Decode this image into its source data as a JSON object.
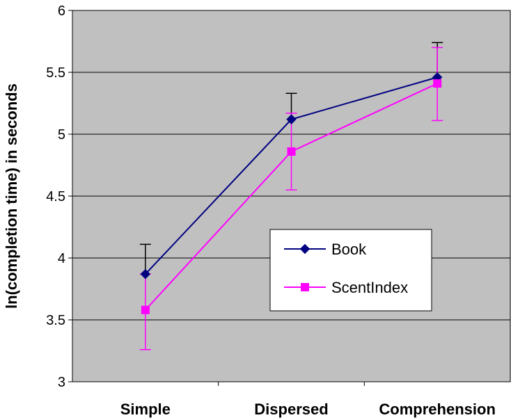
{
  "chart_data": {
    "type": "line",
    "title": "",
    "xlabel": "",
    "ylabel": "ln(completion time) in seconds",
    "categories": [
      "Simple",
      "Dispersed",
      "Comprehension"
    ],
    "ylim": [
      3,
      6
    ],
    "yticks": [
      "3",
      "3.5",
      "4",
      "4.5",
      "5",
      "5.5",
      "6"
    ],
    "grid": "horizontal",
    "plot_background": "#c0c0c0",
    "legend_position": "right-center",
    "series": [
      {
        "name": "Book",
        "color": "#000080",
        "marker": "diamond",
        "values": [
          3.87,
          5.12,
          5.46
        ],
        "error_upper": [
          4.11,
          5.33,
          5.74
        ],
        "error_bar_color": "#000000"
      },
      {
        "name": "ScentIndex",
        "color": "#ff00ff",
        "marker": "square",
        "values": [
          3.58,
          4.86,
          5.41
        ],
        "error_upper": [
          3.87,
          5.17,
          5.7
        ],
        "error_lower": [
          3.26,
          4.55,
          5.11
        ],
        "error_bar_color": "#ff00ff"
      }
    ]
  }
}
